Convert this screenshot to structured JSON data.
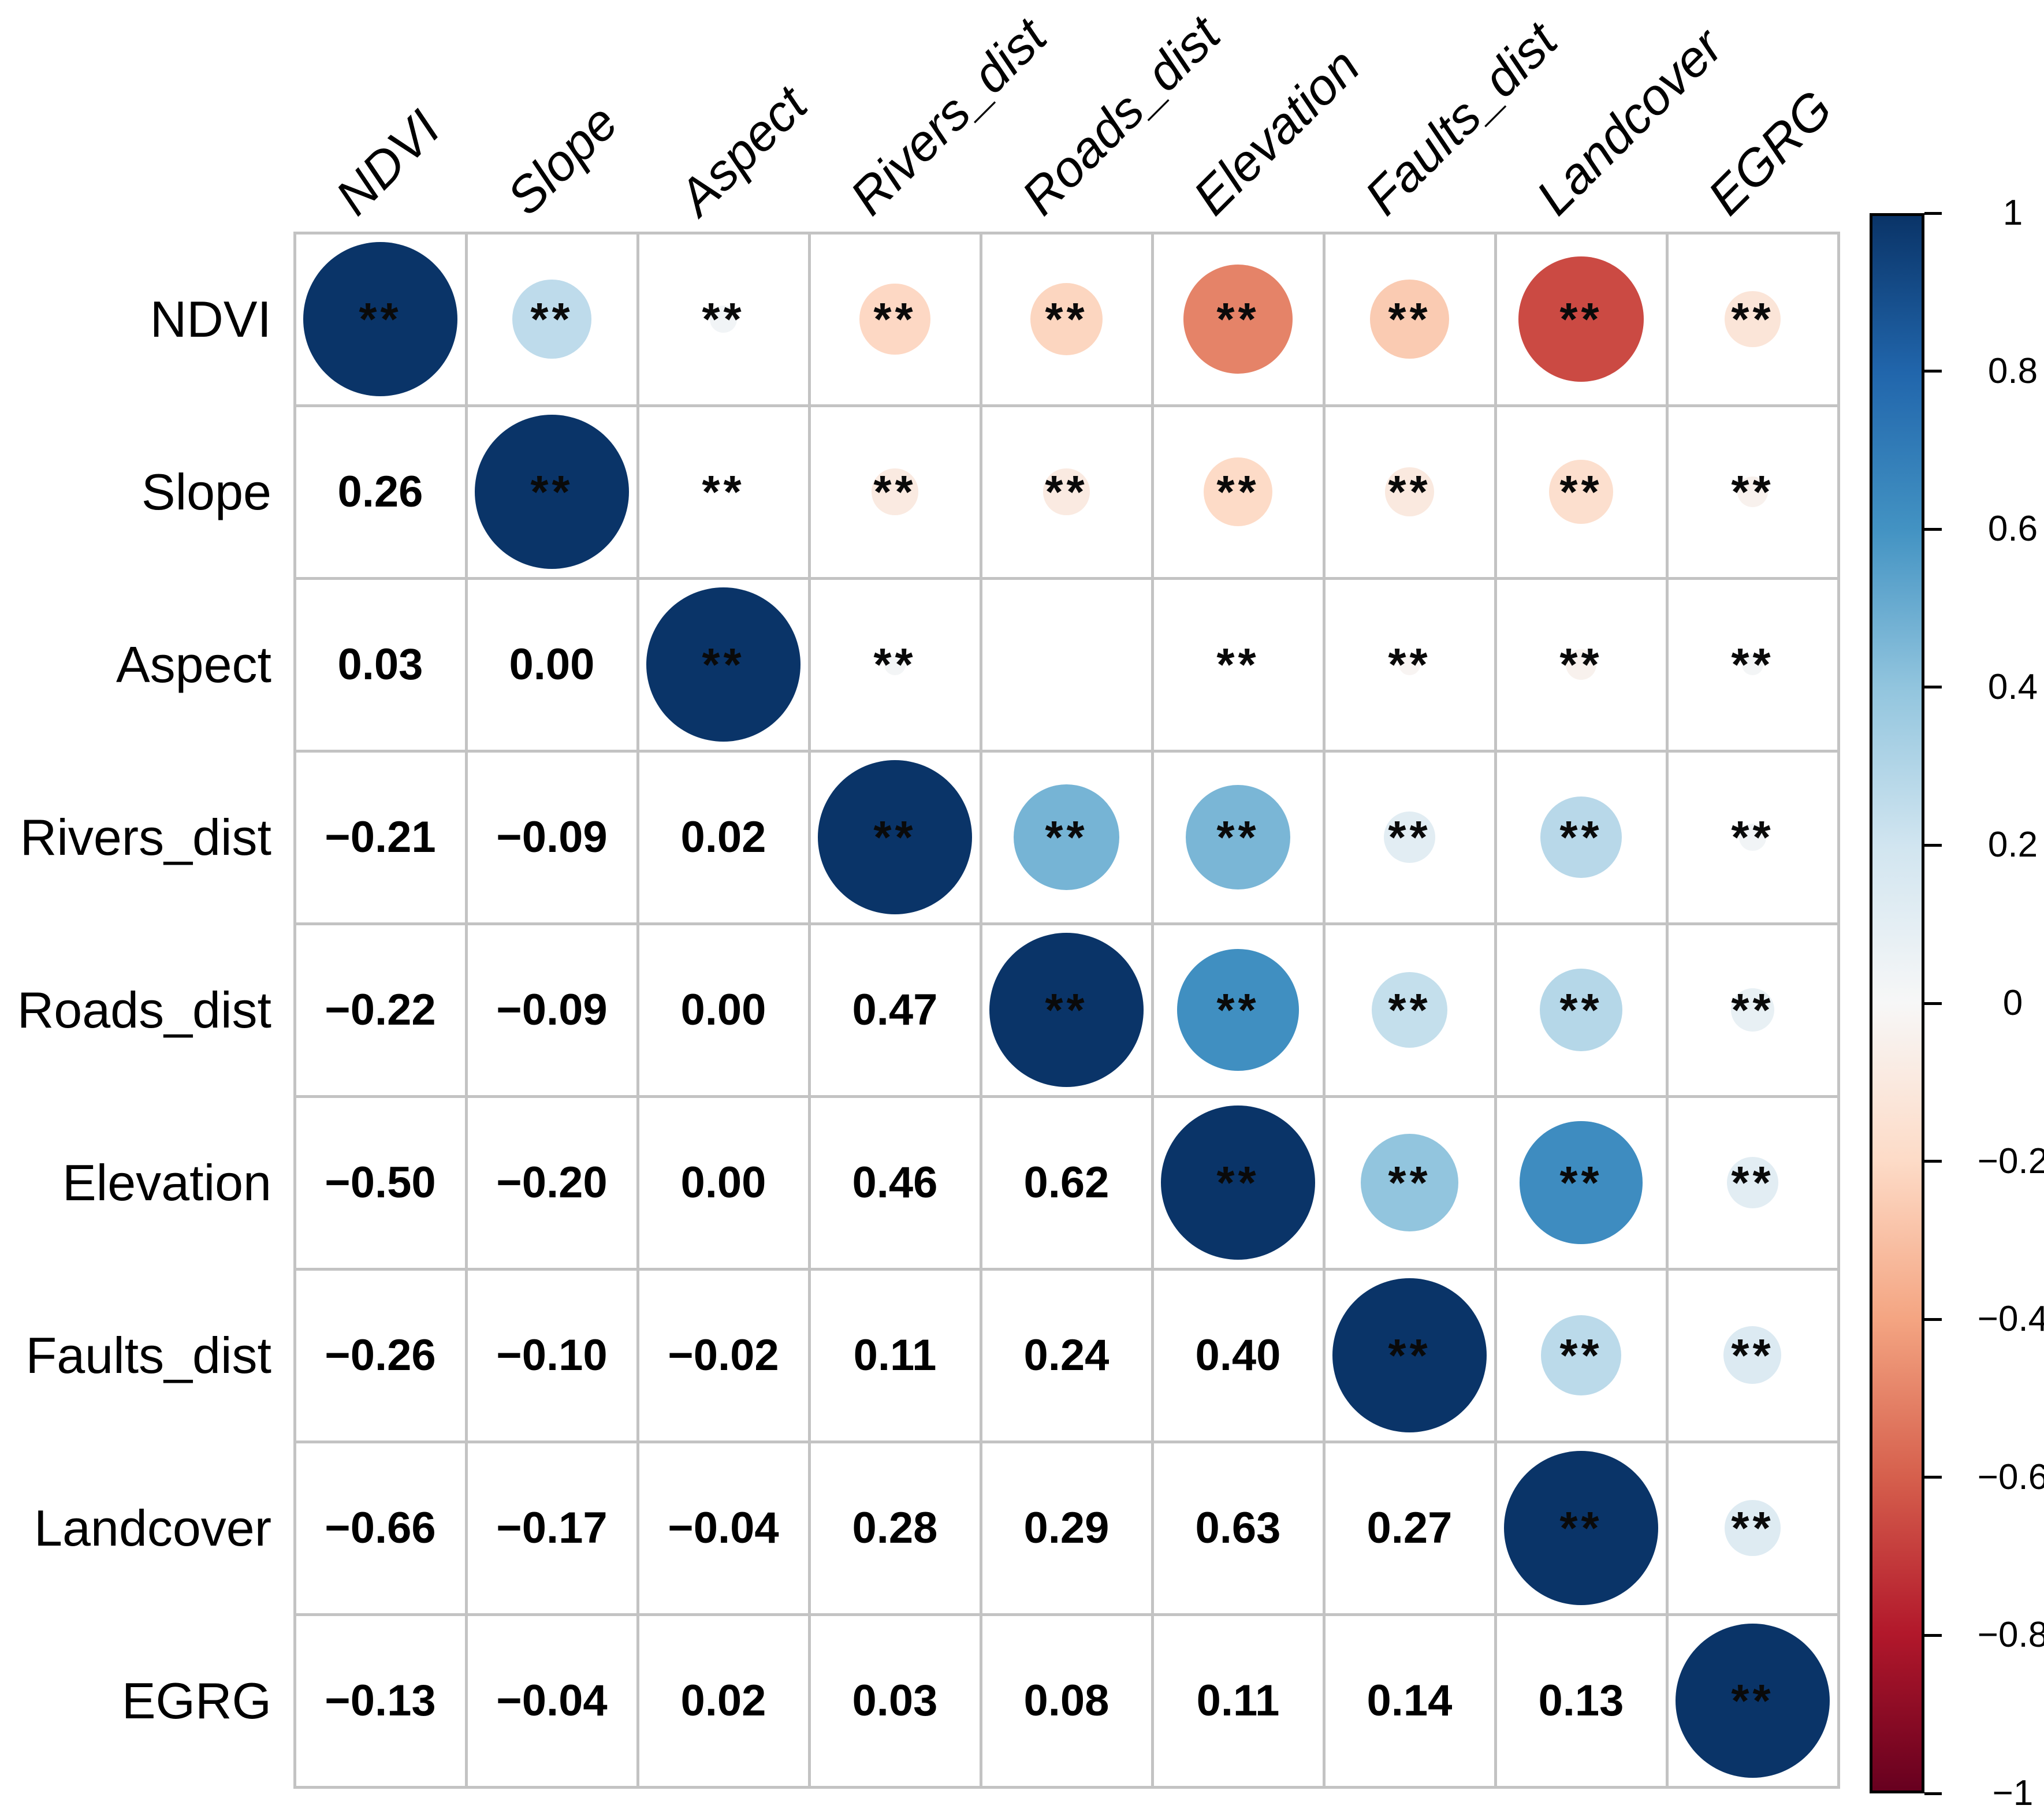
{
  "figure_title": "",
  "star_symbol": "**",
  "colors": {
    "background": "#ffffff",
    "gridline": "#c3c3c3",
    "text": "#000000",
    "colorbar_border": "#000000",
    "palette_rdbu": [
      {
        "value": -1.0,
        "color": "#67001F"
      },
      {
        "value": -0.8,
        "color": "#B2182B"
      },
      {
        "value": -0.6,
        "color": "#D6604D"
      },
      {
        "value": -0.4,
        "color": "#F4A582"
      },
      {
        "value": -0.2,
        "color": "#FDDBC7"
      },
      {
        "value": 0.0,
        "color": "#F7F7F7"
      },
      {
        "value": 0.2,
        "color": "#D1E5F0"
      },
      {
        "value": 0.4,
        "color": "#92C5DE"
      },
      {
        "value": 0.6,
        "color": "#4393C3"
      },
      {
        "value": 0.8,
        "color": "#2166AC"
      },
      {
        "value": 1.0,
        "color": "#0A3468"
      }
    ]
  },
  "chart_data": {
    "type": "heatmap",
    "subtype": "correlation-matrix",
    "description": "Pearson correlation matrix: upper triangle and diagonal show circles sized/colored by r with ** significance marks; lower triangle shows r values.",
    "variables": [
      "NDVI",
      "Slope",
      "Aspect",
      "Rivers_dist",
      "Roads_dist",
      "Elevation",
      "Faults_dist",
      "Landcover",
      "EGRG"
    ],
    "matrix": [
      [
        1.0,
        0.26,
        0.03,
        -0.21,
        -0.22,
        -0.5,
        -0.26,
        -0.66,
        -0.13
      ],
      [
        0.26,
        1.0,
        0.0,
        -0.09,
        -0.09,
        -0.2,
        -0.1,
        -0.17,
        -0.04
      ],
      [
        0.03,
        0.0,
        1.0,
        0.02,
        0.0,
        0.0,
        -0.02,
        -0.04,
        0.02
      ],
      [
        -0.21,
        -0.09,
        0.02,
        1.0,
        0.47,
        0.46,
        0.11,
        0.28,
        0.03
      ],
      [
        -0.22,
        -0.09,
        0.0,
        0.47,
        1.0,
        0.62,
        0.24,
        0.29,
        0.08
      ],
      [
        -0.5,
        -0.2,
        0.0,
        0.46,
        0.62,
        1.0,
        0.4,
        0.63,
        0.11
      ],
      [
        -0.26,
        -0.1,
        -0.02,
        0.11,
        0.24,
        0.4,
        1.0,
        0.27,
        0.14
      ],
      [
        -0.66,
        -0.17,
        -0.04,
        0.28,
        0.29,
        0.63,
        0.27,
        1.0,
        0.13
      ],
      [
        -0.13,
        -0.04,
        0.02,
        0.03,
        0.08,
        0.11,
        0.14,
        0.13,
        1.0
      ]
    ],
    "significance_mark": "**",
    "insignificant_pairs": [
      [
        "Aspect",
        "Roads_dist"
      ]
    ],
    "legend_position": "right",
    "grid": true,
    "colorbar": {
      "range": [
        -1,
        1
      ],
      "tick_values": [
        1,
        0.8,
        0.6,
        0.4,
        0.2,
        0,
        -0.2,
        -0.4,
        -0.6,
        -0.8,
        -1
      ],
      "tick_labels": [
        "1",
        "0.8",
        "0.6",
        "0.4",
        "0.2",
        "0",
        "−0.2",
        "−0.4",
        "−0.6",
        "−0.8",
        "−1"
      ]
    }
  }
}
